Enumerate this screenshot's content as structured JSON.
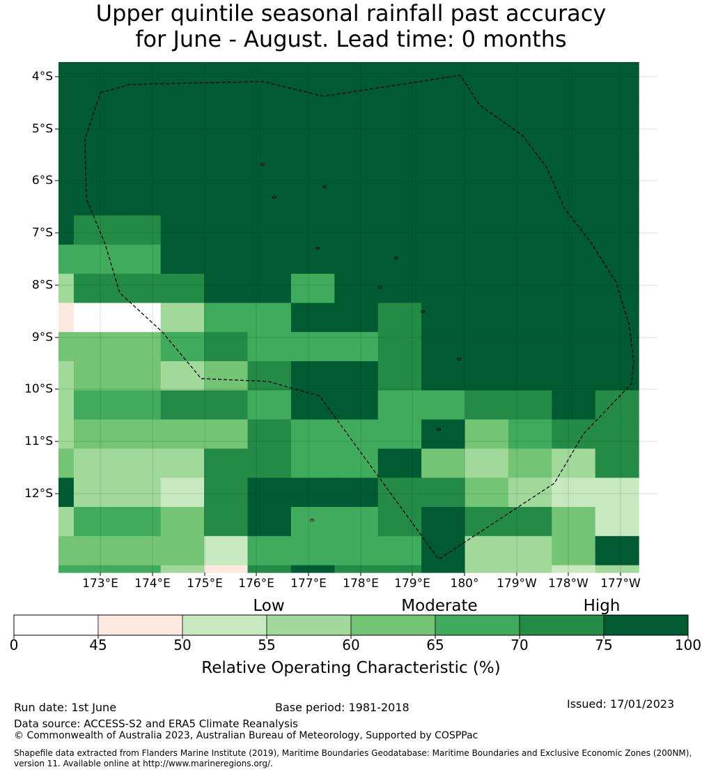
{
  "title": {
    "line1": "Upper quintile seasonal rainfall past accuracy",
    "line2": "for June - August. Lead time: 0 months"
  },
  "map": {
    "lat_labels": [
      "4°S",
      "5°S",
      "6°S",
      "7°S",
      "8°S",
      "9°S",
      "10°S",
      "11°S",
      "12°S"
    ],
    "lon_labels": [
      "173°E",
      "174°E",
      "175°E",
      "176°E",
      "177°E",
      "178°E",
      "179°E",
      "180°",
      "179°W",
      "178°W",
      "177°W"
    ],
    "grid_roc_bins": [
      [
        7,
        7,
        7,
        7,
        7,
        7,
        7,
        7,
        7,
        7,
        7,
        7,
        7,
        7
      ],
      [
        7,
        7,
        7,
        7,
        7,
        7,
        7,
        7,
        7,
        7,
        7,
        7,
        7,
        7
      ],
      [
        7,
        7,
        7,
        7,
        7,
        7,
        7,
        7,
        7,
        7,
        7,
        7,
        7,
        7
      ],
      [
        7,
        7,
        7,
        7,
        7,
        7,
        7,
        7,
        7,
        7,
        7,
        7,
        7,
        7
      ],
      [
        7,
        7,
        7,
        7,
        7,
        7,
        7,
        7,
        7,
        7,
        7,
        7,
        7,
        7
      ],
      [
        7,
        7,
        7,
        7,
        7,
        7,
        7,
        7,
        7,
        7,
        7,
        7,
        7,
        7
      ],
      [
        7,
        6,
        6,
        7,
        7,
        7,
        7,
        7,
        7,
        7,
        7,
        7,
        7,
        7
      ],
      [
        5,
        5,
        5,
        7,
        7,
        7,
        7,
        7,
        7,
        7,
        7,
        7,
        7,
        7
      ],
      [
        3,
        6,
        6,
        6,
        7,
        7,
        5,
        7,
        7,
        7,
        7,
        7,
        7,
        7
      ],
      [
        1,
        0,
        0,
        3,
        5,
        5,
        7,
        7,
        6,
        7,
        7,
        7,
        7,
        7
      ],
      [
        4,
        4,
        4,
        5,
        6,
        5,
        5,
        5,
        6,
        7,
        7,
        7,
        7,
        7
      ],
      [
        3,
        4,
        4,
        3,
        4,
        6,
        7,
        7,
        6,
        7,
        7,
        7,
        7,
        7
      ],
      [
        3,
        5,
        5,
        6,
        6,
        5,
        7,
        7,
        5,
        5,
        6,
        6,
        7,
        6
      ],
      [
        3,
        4,
        4,
        4,
        4,
        6,
        5,
        5,
        5,
        7,
        4,
        5,
        6,
        6
      ],
      [
        4,
        3,
        3,
        3,
        6,
        6,
        5,
        5,
        7,
        4,
        3,
        4,
        3,
        6
      ],
      [
        7,
        3,
        3,
        2,
        6,
        7,
        7,
        7,
        6,
        6,
        4,
        3,
        2,
        2
      ],
      [
        3,
        5,
        5,
        4,
        6,
        7,
        5,
        5,
        6,
        7,
        6,
        6,
        4,
        2
      ],
      [
        4,
        4,
        4,
        4,
        2,
        5,
        5,
        5,
        5,
        7,
        3,
        3,
        4,
        7
      ],
      [
        5,
        5,
        5,
        3,
        1,
        6,
        7,
        6,
        6,
        7,
        3,
        3,
        2,
        3
      ]
    ],
    "boundary": "EEZ outline (dashed)"
  },
  "legend": {
    "category_labels": [
      "Low",
      "Moderate",
      "High"
    ],
    "tick_labels": [
      "0",
      "45",
      "50",
      "55",
      "60",
      "65",
      "70",
      "75",
      "100"
    ],
    "bin_colors": [
      "#ffffff",
      "#fee9e1",
      "#c7e9c0",
      "#a1d99b",
      "#74c476",
      "#41ab5d",
      "#238b45",
      "#005a32"
    ],
    "title": "Relative Operating Characteristic (%)"
  },
  "footer": {
    "run_date": "Run date: 1st June",
    "base_period": "Base period: 1981-2018",
    "issued": "Issued: 17/01/2023",
    "data_source": "Data source: ACCESS-S2 and ERA5 Climate Reanalysis",
    "copyright": "© Commonwealth of Australia 2023, Australian Bureau of Meteorology, Supported by COSPPac",
    "shapefile_line1": "Shapefile data extracted from Flanders Marine Institute (2019), Maritime Boundaries Geodatabase: Maritime Boundaries and Exclusive Economic Zones (200NM),",
    "shapefile_line2": "version 11. Available online at http://www.marineregions.org/."
  }
}
